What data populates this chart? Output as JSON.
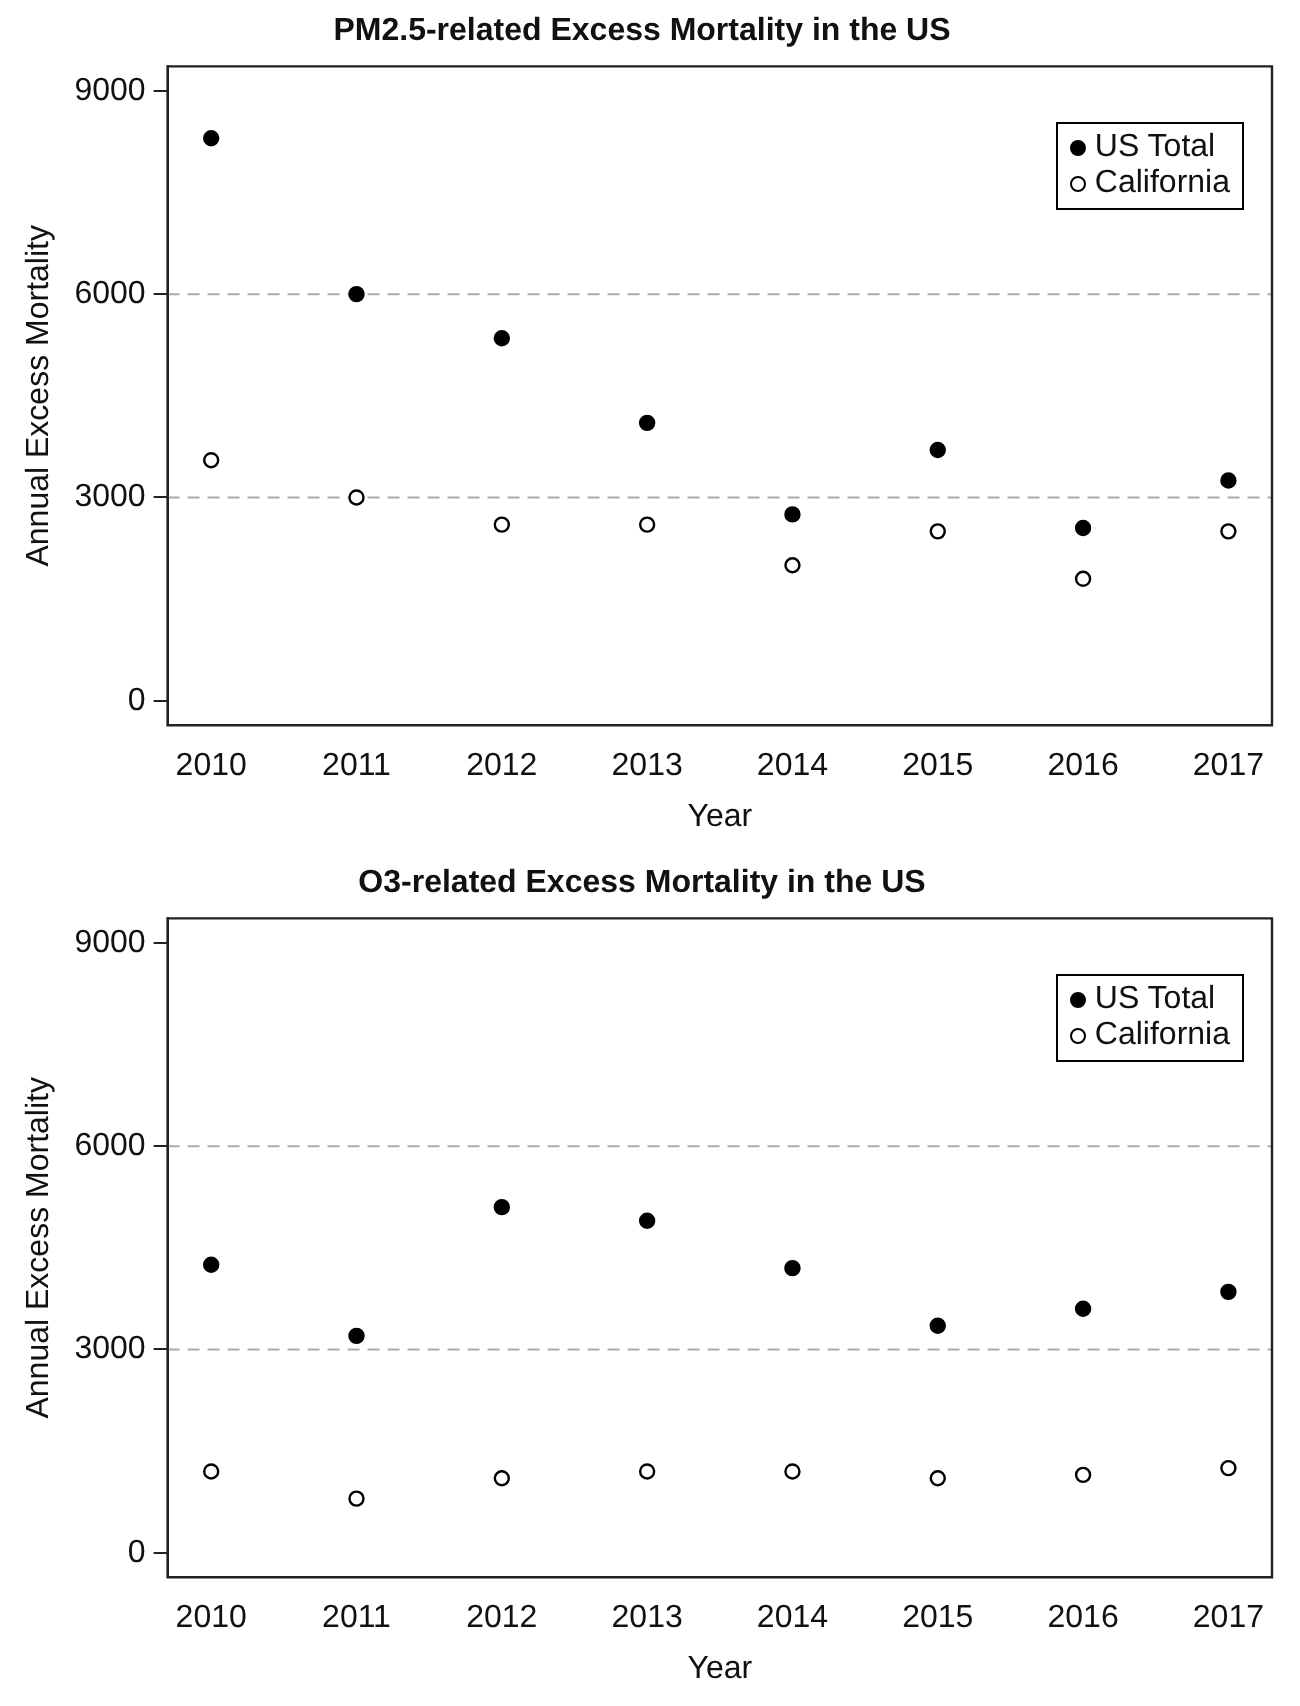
{
  "chart_data": [
    {
      "type": "scatter",
      "title": "PM2.5-related Excess Mortality in the US",
      "xlabel": "Year",
      "ylabel": "Annual Excess Mortality",
      "x": [
        2010,
        2011,
        2012,
        2013,
        2014,
        2015,
        2016,
        2017
      ],
      "series": [
        {
          "name": "US Total",
          "color": "#000000",
          "values": [
            8300,
            6000,
            5350,
            4100,
            2750,
            3700,
            2550,
            3250
          ]
        },
        {
          "name": "California",
          "color": "#ffffff",
          "values": [
            3550,
            3000,
            2600,
            2600,
            2000,
            2500,
            1800,
            2500
          ]
        }
      ],
      "xlim": [
        2009.7,
        2017.3
      ],
      "xticks": [
        2010,
        2011,
        2012,
        2013,
        2014,
        2015,
        2016,
        2017
      ],
      "ylim": [
        -360,
        9360
      ],
      "yticks": [
        0,
        3000,
        6000,
        9000
      ],
      "ref_lines": [
        {
          "axis": "y",
          "value": 3000,
          "color": "#aaaaaa",
          "line_style": "dashed"
        },
        {
          "axis": "y",
          "value": 6000,
          "color": "#aaaaaa",
          "line_style": "dashed"
        }
      ],
      "grid": false,
      "legend": "top right",
      "marker": "circle"
    },
    {
      "type": "scatter",
      "title": "O3-related Excess Mortality in the US",
      "xlabel": "Year",
      "ylabel": "Annual Excess Mortality",
      "x": [
        2010,
        2011,
        2012,
        2013,
        2014,
        2015,
        2016,
        2017
      ],
      "series": [
        {
          "name": "US Total",
          "color": "#000000",
          "values": [
            4250,
            3200,
            5100,
            4900,
            4200,
            3350,
            3600,
            3850
          ]
        },
        {
          "name": "California",
          "color": "#ffffff",
          "values": [
            1200,
            800,
            1100,
            1200,
            1200,
            1100,
            1150,
            1250
          ]
        }
      ],
      "xlim": [
        2009.7,
        2017.3
      ],
      "xticks": [
        2010,
        2011,
        2012,
        2013,
        2014,
        2015,
        2016,
        2017
      ],
      "ylim": [
        -360,
        9360
      ],
      "yticks": [
        0,
        3000,
        6000,
        9000
      ],
      "ref_lines": [
        {
          "axis": "y",
          "value": 3000,
          "color": "#aaaaaa",
          "line_style": "dashed"
        },
        {
          "axis": "y",
          "value": 6000,
          "color": "#aaaaaa",
          "line_style": "dashed"
        }
      ],
      "grid": false,
      "legend": "top right",
      "marker": "circle"
    }
  ]
}
